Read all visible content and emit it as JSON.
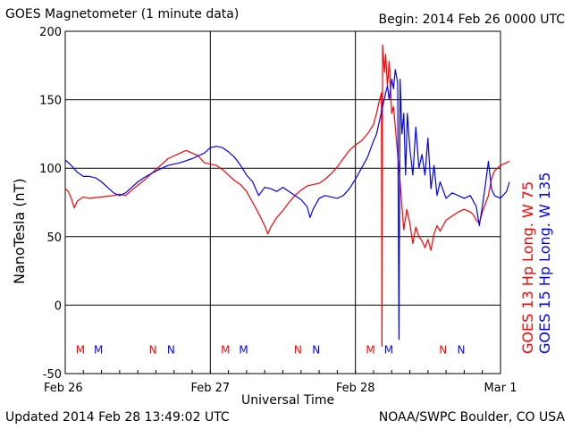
{
  "header": {
    "title": "GOES Magnetometer (1 minute data)",
    "begin": "Begin:  2014 Feb 26 0000 UTC"
  },
  "footer": {
    "updated": "Updated 2014 Feb 28 13:49:02 UTC",
    "credit": "NOAA/SWPC Boulder, CO USA"
  },
  "colors": {
    "goes13": "#ff0000",
    "goes15": "#0000ff",
    "frame": "#000000"
  },
  "chart_data": {
    "type": "line",
    "title": "GOES Magnetometer (1 minute data)",
    "xlabel": "Universal Time",
    "ylabel": "NanoTesla (nT)",
    "xlim": [
      0,
      72
    ],
    "ylim": [
      -50,
      200
    ],
    "y_ticks": [
      "200",
      "150",
      "100",
      "50",
      "0",
      "-50"
    ],
    "x_ticks": [
      "Feb 26",
      "Feb 27",
      "Feb 28",
      "Mar 1"
    ],
    "grid": true,
    "legend_position": "right",
    "series": [
      {
        "name": "GOES 13 Hp   Long. W 75",
        "color": "#ff0000",
        "points": [
          [
            0,
            85
          ],
          [
            0.5,
            83
          ],
          [
            1,
            78
          ],
          [
            1.5,
            71
          ],
          [
            2,
            76
          ],
          [
            3,
            79
          ],
          [
            4,
            78
          ],
          [
            6,
            79
          ],
          [
            8,
            80
          ],
          [
            9,
            81
          ],
          [
            10,
            80
          ],
          [
            11,
            84
          ],
          [
            13,
            91
          ],
          [
            15,
            99
          ],
          [
            17,
            107
          ],
          [
            19,
            111
          ],
          [
            20,
            113
          ],
          [
            21,
            111
          ],
          [
            22,
            109
          ],
          [
            23,
            104
          ],
          [
            24,
            103
          ],
          [
            25,
            102
          ],
          [
            26,
            99
          ],
          [
            27,
            95
          ],
          [
            28,
            91
          ],
          [
            29,
            88
          ],
          [
            30,
            83
          ],
          [
            31,
            75
          ],
          [
            32,
            67
          ],
          [
            33,
            58
          ],
          [
            33.5,
            52
          ],
          [
            34,
            57
          ],
          [
            35,
            64
          ],
          [
            36,
            69
          ],
          [
            37,
            75
          ],
          [
            38,
            80
          ],
          [
            39,
            84
          ],
          [
            40,
            87
          ],
          [
            41,
            88
          ],
          [
            42,
            89
          ],
          [
            43,
            92
          ],
          [
            44,
            96
          ],
          [
            45,
            101
          ],
          [
            46,
            107
          ],
          [
            47,
            113
          ],
          [
            48,
            117
          ],
          [
            49,
            120
          ],
          [
            50,
            125
          ],
          [
            51,
            132
          ],
          [
            51.5,
            140
          ],
          [
            52,
            150
          ],
          [
            52.3,
            155
          ],
          [
            52.4,
            -30
          ],
          [
            52.5,
            190
          ],
          [
            52.8,
            170
          ],
          [
            53,
            183
          ],
          [
            53.3,
            160
          ],
          [
            53.6,
            178
          ],
          [
            54,
            140
          ],
          [
            54.3,
            145
          ],
          [
            54.6,
            130
          ],
          [
            55,
            110
          ],
          [
            55.4,
            90
          ],
          [
            55.7,
            72
          ],
          [
            56,
            55
          ],
          [
            56.5,
            70
          ],
          [
            57,
            60
          ],
          [
            57.5,
            45
          ],
          [
            58,
            57
          ],
          [
            58.5,
            50
          ],
          [
            59,
            47
          ],
          [
            59.5,
            42
          ],
          [
            60,
            48
          ],
          [
            60.5,
            40
          ],
          [
            61,
            52
          ],
          [
            61.5,
            58
          ],
          [
            62,
            54
          ],
          [
            63,
            62
          ],
          [
            64,
            65
          ],
          [
            65,
            68
          ],
          [
            66,
            70
          ],
          [
            67,
            68
          ],
          [
            67.5,
            66
          ],
          [
            68,
            62
          ],
          [
            68.5,
            60
          ],
          [
            69,
            68
          ],
          [
            70,
            80
          ],
          [
            70.5,
            92
          ],
          [
            71,
            98
          ],
          [
            72,
            102
          ],
          [
            73,
            104
          ],
          [
            73.5,
            105
          ]
        ]
      },
      {
        "name": "GOES 15 Hp   Long. W 135",
        "color": "#0000ff",
        "points": [
          [
            0,
            106
          ],
          [
            1,
            102
          ],
          [
            2,
            97
          ],
          [
            3,
            94
          ],
          [
            4,
            94
          ],
          [
            5,
            93
          ],
          [
            6,
            90
          ],
          [
            7,
            86
          ],
          [
            8,
            82
          ],
          [
            9,
            80
          ],
          [
            10,
            82
          ],
          [
            11,
            86
          ],
          [
            12,
            90
          ],
          [
            13,
            93
          ],
          [
            15,
            98
          ],
          [
            17,
            102
          ],
          [
            19,
            104
          ],
          [
            21,
            107
          ],
          [
            23,
            111
          ],
          [
            24,
            115
          ],
          [
            25,
            116
          ],
          [
            26,
            115
          ],
          [
            27,
            112
          ],
          [
            28,
            108
          ],
          [
            29,
            102
          ],
          [
            30,
            95
          ],
          [
            31,
            90
          ],
          [
            32,
            80
          ],
          [
            33,
            86
          ],
          [
            34,
            85
          ],
          [
            35,
            83
          ],
          [
            36,
            86
          ],
          [
            37,
            83
          ],
          [
            38,
            80
          ],
          [
            39,
            77
          ],
          [
            40,
            72
          ],
          [
            40.5,
            64
          ],
          [
            41,
            70
          ],
          [
            42,
            78
          ],
          [
            43,
            80
          ],
          [
            44,
            79
          ],
          [
            45,
            78
          ],
          [
            46,
            80
          ],
          [
            47,
            85
          ],
          [
            48,
            92
          ],
          [
            49,
            100
          ],
          [
            50,
            108
          ],
          [
            51,
            120
          ],
          [
            51.5,
            125
          ],
          [
            52,
            135
          ],
          [
            52.5,
            145
          ],
          [
            53,
            155
          ],
          [
            53.3,
            160
          ],
          [
            53.6,
            150
          ],
          [
            54,
            165
          ],
          [
            54.3,
            158
          ],
          [
            54.6,
            172
          ],
          [
            55,
            162
          ],
          [
            55.2,
            -25
          ],
          [
            55.4,
            165
          ],
          [
            55.7,
            125
          ],
          [
            56,
            140
          ],
          [
            56.3,
            95
          ],
          [
            56.6,
            140
          ],
          [
            57,
            115
          ],
          [
            57.5,
            95
          ],
          [
            58,
            130
          ],
          [
            58.5,
            100
          ],
          [
            59,
            110
          ],
          [
            59.5,
            95
          ],
          [
            60,
            122
          ],
          [
            60.5,
            85
          ],
          [
            61,
            102
          ],
          [
            61.5,
            80
          ],
          [
            62,
            90
          ],
          [
            63,
            78
          ],
          [
            64,
            82
          ],
          [
            65,
            80
          ],
          [
            66,
            78
          ],
          [
            67,
            80
          ],
          [
            68,
            72
          ],
          [
            68.5,
            58
          ],
          [
            69,
            72
          ],
          [
            69.5,
            88
          ],
          [
            70,
            105
          ],
          [
            70.5,
            85
          ],
          [
            71,
            80
          ],
          [
            72,
            78
          ],
          [
            73,
            83
          ],
          [
            73.5,
            90
          ]
        ]
      }
    ],
    "events": [
      {
        "label": "M",
        "x": 2.5,
        "color": "#ff0000"
      },
      {
        "label": "M",
        "x": 5.5,
        "color": "#0000ff"
      },
      {
        "label": "N",
        "x": 14.5,
        "color": "#ff0000"
      },
      {
        "label": "N",
        "x": 17.5,
        "color": "#0000ff"
      },
      {
        "label": "M",
        "x": 26.5,
        "color": "#ff0000"
      },
      {
        "label": "M",
        "x": 29.5,
        "color": "#0000ff"
      },
      {
        "label": "N",
        "x": 38.5,
        "color": "#ff0000"
      },
      {
        "label": "N",
        "x": 41.5,
        "color": "#0000ff"
      },
      {
        "label": "M",
        "x": 50.5,
        "color": "#ff0000"
      },
      {
        "label": "M",
        "x": 53.5,
        "color": "#0000ff"
      },
      {
        "label": "N",
        "x": 62.5,
        "color": "#ff0000"
      },
      {
        "label": "N",
        "x": 65.5,
        "color": "#0000ff"
      }
    ],
    "event_y": -32
  }
}
